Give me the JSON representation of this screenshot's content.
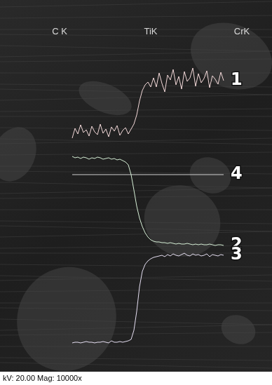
{
  "chart_data": {
    "type": "line",
    "annotations": [
      "C K",
      "TiK",
      "CrK"
    ],
    "caption": "kV: 20.00 Mag: 10000x",
    "xlim": [
      0,
      388
    ],
    "ylim": [
      0,
      549
    ],
    "grid": false,
    "tick_labels": false,
    "x": [
      103,
      107,
      111,
      115,
      119,
      123,
      127,
      131,
      135,
      139,
      143,
      147,
      151,
      155,
      159,
      163,
      167,
      171,
      175,
      179,
      183,
      187,
      191,
      195,
      199,
      203,
      207,
      211,
      215,
      219,
      223,
      227,
      231,
      235,
      239,
      243,
      247,
      251,
      255,
      259,
      263,
      267,
      271,
      275,
      279,
      283,
      287,
      291,
      295,
      299,
      303,
      307,
      311,
      315,
      319
    ],
    "series": [
      {
        "name": "1",
        "color": "#f2d8d8",
        "values": [
          352,
          366,
          358,
          371,
          360,
          364,
          355,
          369,
          361,
          357,
          372,
          359,
          365,
          354,
          368,
          362,
          370,
          356,
          363,
          367,
          358,
          365,
          372,
          385,
          405,
          420,
          428,
          432,
          425,
          438,
          425,
          445,
          430,
          418,
          442,
          435,
          450,
          428,
          440,
          422,
          447,
          433,
          438,
          452,
          426,
          444,
          431,
          437,
          448,
          424,
          441,
          436,
          429,
          446,
          434
        ]
      },
      {
        "name": "2",
        "color": "#d6efd6",
        "values": [
          326,
          324,
          325,
          323,
          325,
          324,
          322,
          324,
          323,
          325,
          324,
          322,
          323,
          324,
          322,
          323,
          321,
          322,
          320,
          318,
          314,
          300,
          278,
          255,
          238,
          226,
          217,
          211,
          207,
          205,
          204,
          204,
          203,
          203,
          202,
          203,
          202,
          201,
          202,
          201,
          201,
          202,
          201,
          200,
          201,
          200,
          201,
          200,
          200,
          201,
          200,
          199,
          200,
          200,
          199
        ]
      },
      {
        "name": "3",
        "color": "#e6dff2",
        "values": [
          60,
          61,
          61,
          60,
          61,
          62,
          61,
          61,
          60,
          61,
          61,
          62,
          61,
          60,
          63,
          61,
          61,
          62,
          61,
          62,
          63,
          65,
          78,
          105,
          140,
          162,
          172,
          177,
          180,
          182,
          183,
          184,
          185,
          183,
          186,
          184,
          187,
          185,
          184,
          186,
          188,
          185,
          184,
          187,
          185,
          186,
          184,
          185,
          187,
          183,
          186,
          185,
          184,
          186,
          185
        ]
      },
      {
        "name": "4",
        "color": "#d0d0d0",
        "values": [
          300,
          300,
          300,
          300,
          300,
          300,
          300,
          300,
          300,
          300,
          300,
          300,
          300,
          300,
          300,
          300,
          300,
          300,
          300,
          300,
          300,
          300,
          300,
          300,
          300,
          300,
          300,
          300,
          300,
          300,
          300,
          300,
          300,
          300,
          300,
          300,
          300,
          300,
          300,
          300,
          300,
          300,
          300,
          300,
          300,
          300,
          300,
          300,
          300,
          300,
          300,
          300,
          300,
          300,
          300
        ]
      }
    ]
  }
}
